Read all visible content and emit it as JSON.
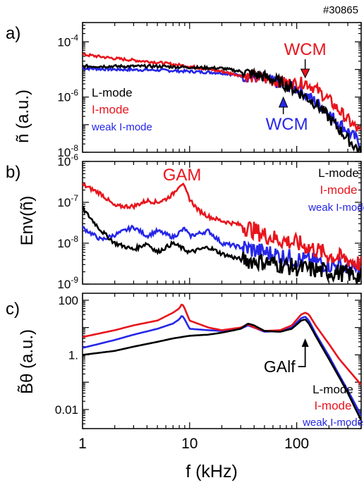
{
  "shot_number": "#30865",
  "xlabel": "f (kHz)",
  "x_ticks": [
    "1",
    "10",
    "100"
  ],
  "chart_data": [
    {
      "type": "line",
      "panel_label": "a)",
      "ylabel": "ñ (a.u.)",
      "yscale": "log",
      "xscale": "log",
      "xlim": [
        1,
        400
      ],
      "ylim": [
        1e-08,
        0.0005
      ],
      "y_ticks": [
        {
          "value": 0.0001,
          "label": "10-4"
        },
        {
          "value": 1e-06,
          "label": "10-6"
        },
        {
          "value": 1e-08,
          "label": "10-8"
        }
      ],
      "legend": [
        "L-mode",
        "I-mode",
        "weak I-mode"
      ],
      "annotations": [
        {
          "text": "WCM",
          "color": "#e8141c",
          "x": 120,
          "y": 4e-06
        },
        {
          "text": "WCM",
          "color": "#2626e8",
          "x": 75,
          "y": 1.5e-06
        }
      ],
      "series": [
        {
          "name": "L-mode",
          "color": "#000000",
          "x": [
            1,
            2,
            5,
            10,
            20,
            30,
            50,
            70,
            100,
            150,
            200,
            300,
            400
          ],
          "values": [
            1.3e-05,
            1.3e-05,
            1.3e-05,
            1.2e-05,
            1.1e-05,
            8.5e-06,
            5.5e-06,
            3.5e-06,
            1.7e-06,
            6e-07,
            1.8e-07,
            3e-08,
            1e-08
          ]
        },
        {
          "name": "I-mode",
          "color": "#e8141c",
          "x": [
            1,
            2,
            5,
            10,
            20,
            30,
            50,
            70,
            100,
            120,
            150,
            200,
            300,
            400
          ],
          "values": [
            3.5e-05,
            2.5e-05,
            1.8e-05,
            1.3e-05,
            8.5e-06,
            6e-06,
            4.5e-06,
            3.5e-06,
            3e-06,
            3.5e-06,
            2e-06,
            8e-07,
            1.5e-07,
            5e-08
          ]
        },
        {
          "name": "weak I-mode",
          "color": "#2626e8",
          "x": [
            1,
            2,
            5,
            10,
            20,
            30,
            50,
            70,
            100,
            150,
            200,
            300,
            400
          ],
          "values": [
            1.1e-05,
            1e-05,
            9.5e-06,
            8.5e-06,
            7.5e-06,
            6e-06,
            4.5e-06,
            3e-06,
            2e-06,
            7e-07,
            2.5e-07,
            6e-08,
            2e-08
          ]
        }
      ]
    },
    {
      "type": "line",
      "panel_label": "b)",
      "ylabel": "Env(ñ)",
      "yscale": "log",
      "xscale": "log",
      "xlim": [
        1,
        400
      ],
      "ylim": [
        1e-09,
        1e-06
      ],
      "y_ticks": [
        {
          "value": 1e-06,
          "label": "10-6"
        },
        {
          "value": 1e-07,
          "label": "10-7"
        },
        {
          "value": 1e-08,
          "label": "10-8"
        },
        {
          "value": 1e-09,
          "label": "10-9"
        }
      ],
      "legend": [
        "L-mode",
        "I-mode",
        "weak I-mode"
      ],
      "annotations": [
        {
          "text": "GAM",
          "color": "#e8141c",
          "x": 8.5,
          "y": 3e-07
        }
      ],
      "series": [
        {
          "name": "L-mode",
          "color": "#000000",
          "x": [
            1,
            1.5,
            2,
            3,
            4,
            5,
            7,
            10,
            15,
            20,
            30,
            50,
            70,
            100,
            150,
            200,
            300,
            400
          ],
          "values": [
            7e-08,
            2e-08,
            1e-08,
            7e-09,
            1e-08,
            6e-09,
            1e-08,
            6e-09,
            8e-09,
            5.5e-09,
            4e-09,
            3.5e-09,
            3e-09,
            2.5e-09,
            2.2e-09,
            2e-09,
            1.8e-09,
            1.5e-09
          ]
        },
        {
          "name": "I-mode",
          "color": "#e8141c",
          "x": [
            1,
            1.5,
            2,
            3,
            4,
            5,
            6,
            7,
            8,
            8.5,
            9,
            10,
            12,
            15,
            20,
            30,
            50,
            70,
            100,
            150,
            200,
            300,
            400
          ],
          "values": [
            2.7e-07,
            1.6e-07,
            8e-08,
            8e-08,
            1.1e-07,
            1e-07,
            1.2e-07,
            1.6e-07,
            2.6e-07,
            2.9e-07,
            2.2e-07,
            1.2e-07,
            6.5e-08,
            4.5e-08,
            3.5e-08,
            2.8e-08,
            1.6e-08,
            1.2e-08,
            1e-08,
            7e-09,
            5e-09,
            4e-09,
            3e-09
          ]
        },
        {
          "name": "weak I-mode",
          "color": "#2626e8",
          "x": [
            1,
            1.5,
            2,
            3,
            4,
            5,
            7,
            9,
            10,
            15,
            20,
            30,
            50,
            70,
            100,
            150,
            200,
            300,
            400
          ],
          "values": [
            2.4e-08,
            1.2e-08,
            1.6e-08,
            2.5e-08,
            1.5e-08,
            2e-08,
            1.4e-08,
            2.3e-08,
            1.5e-08,
            2e-08,
            1e-08,
            8e-09,
            6e-09,
            5e-09,
            4e-09,
            3.5e-09,
            3e-09,
            2.5e-09,
            2e-09
          ]
        }
      ]
    },
    {
      "type": "line",
      "panel_label": "c)",
      "ylabel": "B̃θ (a.u.)",
      "yscale": "log",
      "xscale": "log",
      "xlim": [
        1,
        400
      ],
      "ylim": [
        0.002,
        180
      ],
      "y_ticks": [
        {
          "value": 100,
          "label": "100"
        },
        {
          "value": 1,
          "label": "1."
        },
        {
          "value": 0.01,
          "label": "0.01"
        }
      ],
      "legend": [
        "L-mode",
        "I-mode",
        "weak I-mode"
      ],
      "annotations": [
        {
          "text": "GAlf",
          "color": "#000000",
          "x": 120,
          "y": 3
        }
      ],
      "series": [
        {
          "name": "L-mode",
          "color": "#000000",
          "x": [
            1,
            2,
            3,
            5,
            7,
            10,
            15,
            20,
            30,
            35,
            40,
            50,
            70,
            90,
            110,
            120,
            130,
            150,
            200,
            250,
            300,
            400
          ],
          "values": [
            1,
            1.4,
            2,
            3,
            4,
            5,
            5.5,
            6.5,
            9,
            14,
            12,
            7.5,
            7,
            9,
            18,
            20,
            14,
            5,
            0.7,
            0.15,
            0.04,
            0.004
          ]
        },
        {
          "name": "I-mode",
          "color": "#e8141c",
          "x": [
            1,
            2,
            3,
            5,
            7,
            8,
            8.5,
            9,
            10,
            15,
            20,
            30,
            35,
            40,
            50,
            70,
            90,
            110,
            120,
            130,
            150,
            200,
            250,
            300,
            400
          ],
          "values": [
            4.5,
            8,
            12,
            18,
            35,
            50,
            75,
            50,
            18,
            10,
            8,
            10,
            13,
            10,
            7.5,
            8,
            12,
            30,
            35,
            30,
            12,
            2.5,
            0.7,
            0.3,
            0.08
          ]
        },
        {
          "name": "weak I-mode",
          "color": "#2626e8",
          "x": [
            1,
            2,
            3,
            5,
            7,
            8,
            8.5,
            9,
            10,
            15,
            20,
            30,
            35,
            40,
            50,
            70,
            90,
            110,
            120,
            130,
            150,
            200,
            250,
            300,
            400
          ],
          "values": [
            1.8,
            3.5,
            5.5,
            9,
            14,
            20,
            28,
            20,
            9,
            8,
            7.5,
            9,
            12,
            10,
            7,
            7.5,
            10,
            22,
            25,
            18,
            6,
            0.9,
            0.18,
            0.05,
            0.006
          ]
        }
      ]
    }
  ]
}
